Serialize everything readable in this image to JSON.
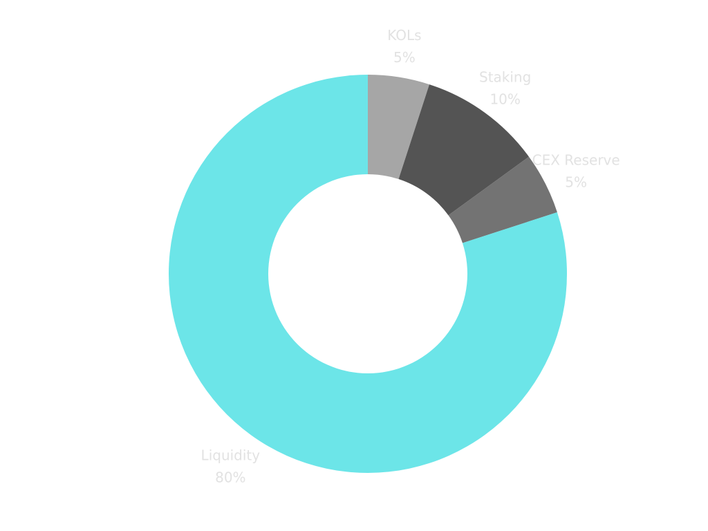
{
  "chart_data": {
    "type": "pie",
    "style": "donut",
    "title": "",
    "slices": [
      {
        "label": "KOLs",
        "value": 5,
        "value_label": "5%",
        "color": "#a6a6a6"
      },
      {
        "label": "Staking",
        "value": 10,
        "value_label": "10%",
        "color": "#545454"
      },
      {
        "label": "CEX Reserve",
        "value": 5,
        "value_label": "5%",
        "color": "#737373"
      },
      {
        "label": "Liquidity",
        "value": 80,
        "value_label": "80%",
        "color": "#6ce5e8"
      }
    ],
    "label_color": "#e2e2e2",
    "start_position": "top",
    "direction": "clockwise"
  }
}
